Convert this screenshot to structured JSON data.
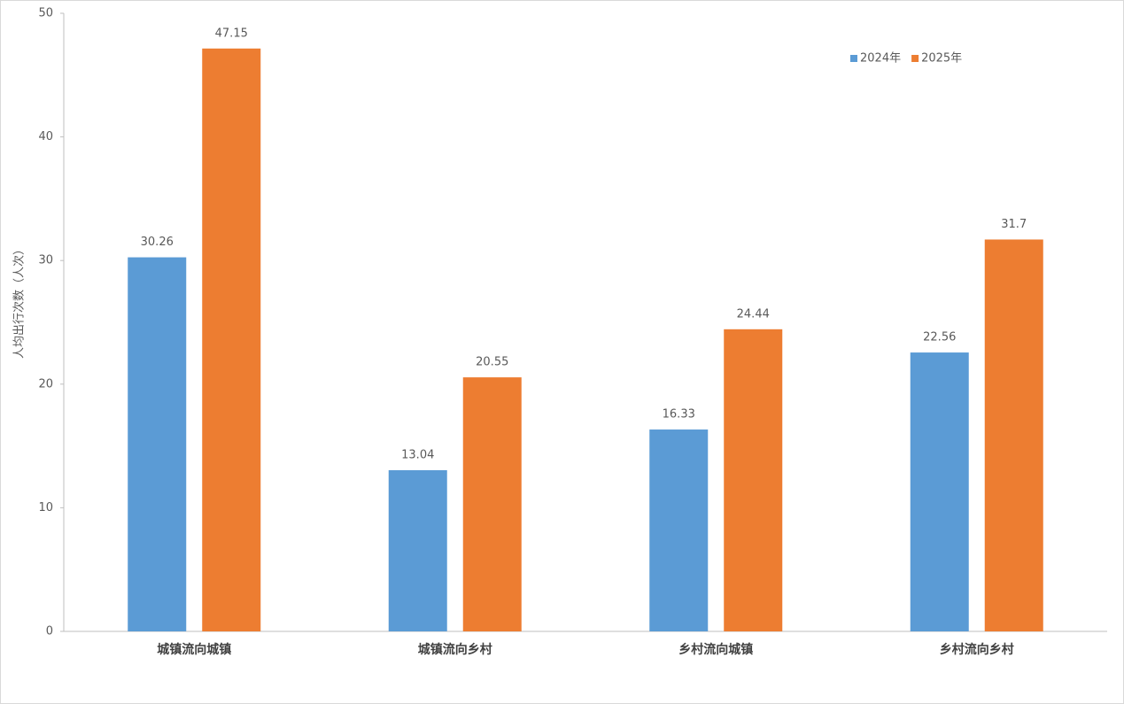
{
  "chart_data": {
    "type": "bar",
    "y_label": "人均出行次数（人次）",
    "categories": [
      "城镇流向城镇",
      "城镇流向乡村",
      "乡村流向城镇",
      "乡村流向乡村"
    ],
    "series": [
      {
        "name": "2024年",
        "color": "#5b9bd5",
        "values": [
          30.26,
          13.04,
          16.33,
          22.56
        ]
      },
      {
        "name": "2025年",
        "color": "#ed7d31",
        "values": [
          47.15,
          20.55,
          24.44,
          31.7
        ]
      }
    ],
    "ylim": [
      0,
      50
    ],
    "yticks": [
      0,
      10,
      20,
      30,
      40,
      50
    ],
    "grid": false,
    "legend": "top-right"
  }
}
